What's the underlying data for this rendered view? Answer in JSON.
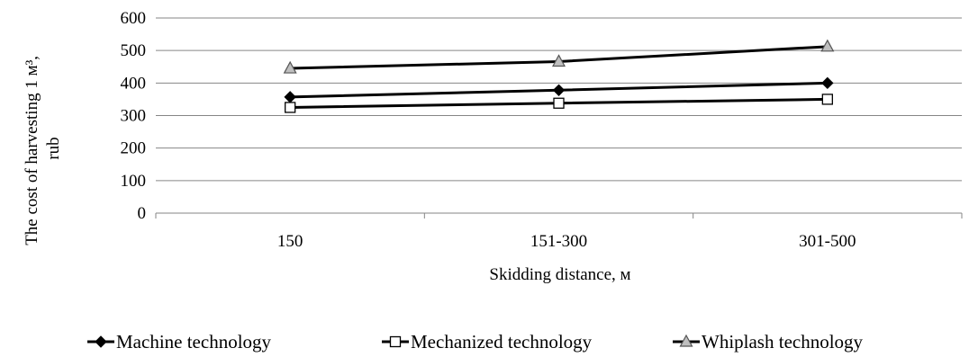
{
  "chart_data": {
    "type": "line",
    "categories": [
      "150",
      "151-300",
      "301-500"
    ],
    "series": [
      {
        "name": "Machine technology",
        "marker": "diamond",
        "values": [
          357,
          378,
          400
        ]
      },
      {
        "name": "Mechanized technology",
        "marker": "square",
        "values": [
          325,
          338,
          350
        ]
      },
      {
        "name": "Whiplash technology",
        "marker": "triangle",
        "values": [
          445,
          466,
          512
        ]
      }
    ],
    "title": "",
    "xlabel": "Skidding distance, м",
    "ylabel_line1": "The cost of harvesting 1 м³,",
    "ylabel_line2": "rub",
    "ylim": [
      0,
      600
    ],
    "yticks": [
      "0",
      "100",
      "200",
      "300",
      "400",
      "500",
      "600"
    ],
    "grid": true,
    "legend_position": "bottom",
    "colors": {
      "line": "#000000",
      "grid": "#868686",
      "marker_triangle_fill": "#bfbfbf",
      "marker_square_fill": "#ffffff",
      "marker_diamond_fill": "#000000"
    }
  }
}
